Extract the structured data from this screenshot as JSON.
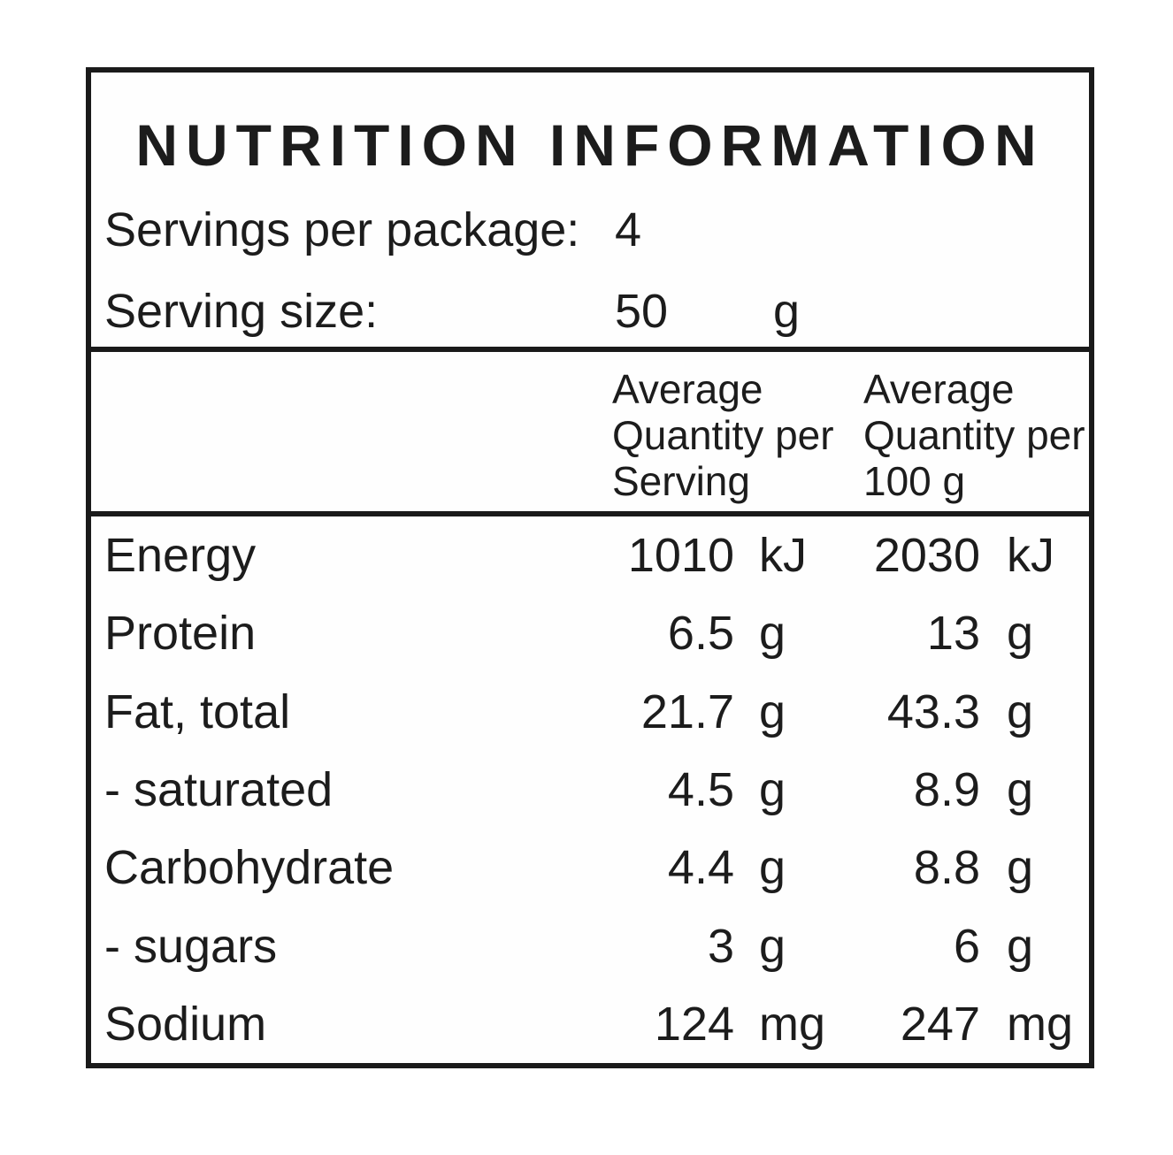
{
  "panel": {
    "title": "NUTRITION INFORMATION",
    "servings_per_package": {
      "label": "Servings per package:",
      "value": "4"
    },
    "serving_size": {
      "label": "Serving size:",
      "value": "50",
      "unit": "g"
    },
    "columns": {
      "per_serving": [
        "Average",
        "Quantity per",
        "Serving"
      ],
      "per_100g": [
        "Average",
        "Quantity per",
        "100 g"
      ]
    },
    "rows": [
      {
        "nutrient": "Energy",
        "per_serving": {
          "value": "1010",
          "unit": "kJ"
        },
        "per_100g": {
          "value": "2030",
          "unit": "kJ"
        }
      },
      {
        "nutrient": "Protein",
        "per_serving": {
          "value": "6.5",
          "unit": "g"
        },
        "per_100g": {
          "value": "13",
          "unit": "g"
        }
      },
      {
        "nutrient": "Fat, total",
        "per_serving": {
          "value": "21.7",
          "unit": "g"
        },
        "per_100g": {
          "value": "43.3",
          "unit": "g"
        }
      },
      {
        "nutrient": "- saturated",
        "per_serving": {
          "value": "4.5",
          "unit": "g"
        },
        "per_100g": {
          "value": "8.9",
          "unit": "g"
        }
      },
      {
        "nutrient": "Carbohydrate",
        "per_serving": {
          "value": "4.4",
          "unit": "g"
        },
        "per_100g": {
          "value": "8.8",
          "unit": "g"
        }
      },
      {
        "nutrient": "- sugars",
        "per_serving": {
          "value": "3",
          "unit": "g"
        },
        "per_100g": {
          "value": "6",
          "unit": "g"
        }
      },
      {
        "nutrient": "Sodium",
        "per_serving": {
          "value": "124",
          "unit": "mg"
        },
        "per_100g": {
          "value": "247",
          "unit": "mg"
        }
      }
    ],
    "colors": {
      "text": "#1c1c1c",
      "border": "#1a1a1a",
      "background": "#ffffff"
    }
  }
}
